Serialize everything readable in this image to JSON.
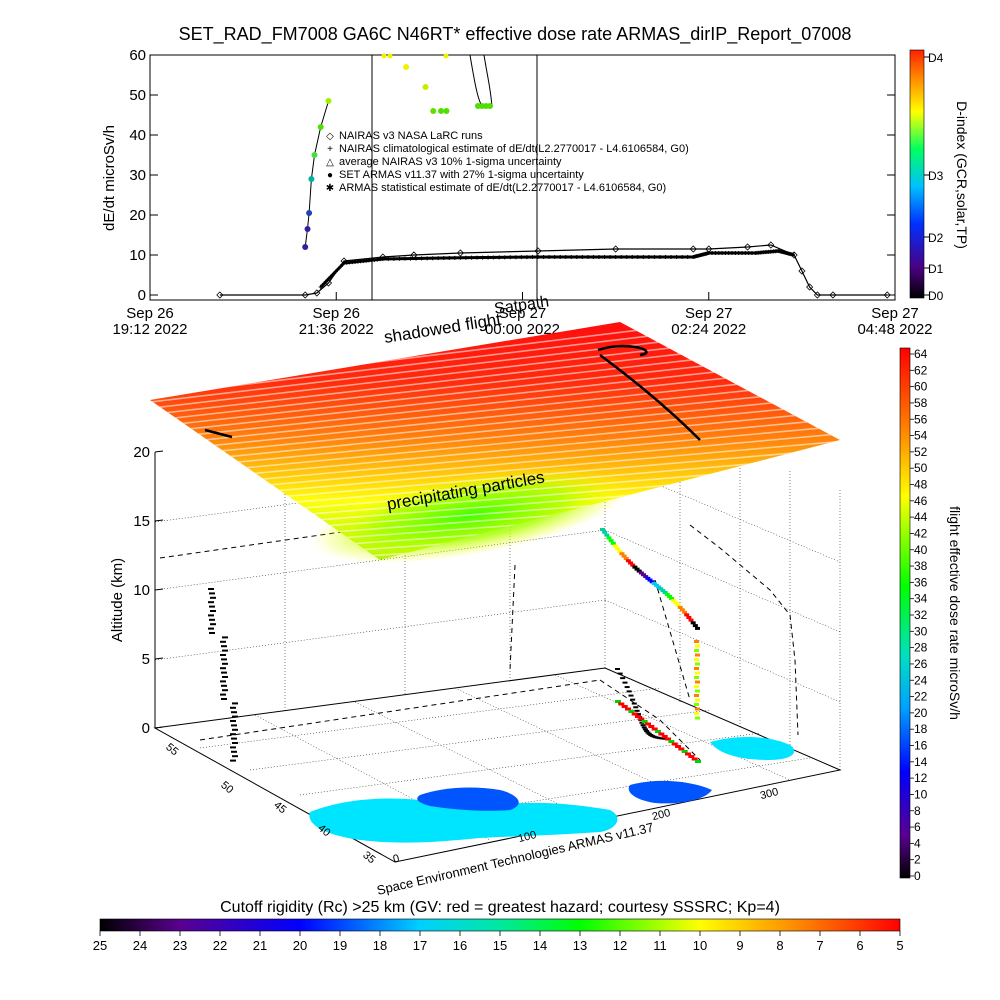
{
  "top_chart": {
    "title": "SET_RAD_FM7008  GA6C N46RT* effective dose rate ARMAS_dirIP_Report_07008",
    "ylabel": "dE/dt microSv/h",
    "ylim": [
      0,
      60
    ],
    "y_ticks": [
      "0",
      "10",
      "20",
      "30",
      "40",
      "50",
      "60"
    ],
    "x_ticks": [
      {
        "line1": "Sep 26",
        "line2": "19:12 2022"
      },
      {
        "line1": "Sep 26",
        "line2": "21:36 2022"
      },
      {
        "line1": "Sep 27",
        "line2": "00:00 2022"
      },
      {
        "line1": "Sep 27",
        "line2": "02:24 2022"
      },
      {
        "line1": "Sep 27",
        "line2": "04:48 2022"
      }
    ],
    "legend": [
      {
        "symbol": "◇",
        "text": "NAIRAS v3 NASA LaRC runs"
      },
      {
        "symbol": "+",
        "text": "NAIRAS climatological estimate of dE/dt(L2.2770017 - L4.6106584, G0)"
      },
      {
        "symbol": "△",
        "text": "average NAIRAS v3 10% 1-sigma uncertainty"
      },
      {
        "symbol": "●",
        "text": "SET ARMAS v11.37 with 27% 1-sigma uncertainty"
      },
      {
        "symbol": "✱",
        "text": "ARMAS statistical estimate of dE/dt(L2.2770017 - L4.6106584, G0)"
      }
    ],
    "dindex_label": "D-index (GCR,solar,TP)",
    "dindex_ticks": [
      "D4",
      "D3",
      "D2",
      "D1",
      "D0"
    ]
  },
  "chart_data": [
    {
      "type": "line",
      "title": "SET_RAD_FM7008  GA6C N46RT* effective dose rate ARMAS_dirIP_Report_07008",
      "ylabel": "dE/dt microSv/h",
      "ylim": [
        0,
        60
      ],
      "x_unit": "hours after Sep 26 19:12 2022",
      "xlim": [
        0,
        9.6
      ],
      "series": [
        {
          "name": "NAIRAS v3 NASA LaRC runs",
          "x": [
            0.9,
            2.0,
            2.15,
            2.3,
            2.5,
            3.0,
            3.4,
            4.0,
            5.0,
            6.0,
            7.0,
            7.2,
            7.7,
            8.0,
            8.3,
            8.4,
            8.5,
            8.6,
            8.8,
            9.5
          ],
          "y": [
            0,
            0,
            0.5,
            3,
            8.5,
            9.5,
            10,
            10.5,
            11,
            11.5,
            11.5,
            11.5,
            12,
            12.5,
            10,
            6,
            2,
            0,
            0,
            0
          ]
        },
        {
          "name": "ARMAS statistical estimate of dE/dt(L2.2770017 - L4.6106584, G0)",
          "x": [
            2.2,
            2.5,
            3.0,
            4.0,
            5.0,
            6.0,
            7.0,
            7.2,
            7.8,
            8.1,
            8.3
          ],
          "y": [
            2,
            8,
            9,
            9.3,
            9.5,
            9.5,
            9.5,
            10.5,
            10.5,
            11,
            10
          ]
        },
        {
          "name": "SET ARMAS v11.37 with 27% 1-sigma uncertainty",
          "x": [
            2.0,
            2.03,
            2.05,
            2.08,
            2.12,
            2.2,
            2.3,
            3.1,
            3.3,
            3.55,
            3.65,
            3.75,
            3.82
          ],
          "y": [
            12,
            16.5,
            20.5,
            29,
            35,
            42,
            48.5,
            62,
            57,
            52,
            46,
            46,
            46
          ]
        }
      ],
      "dindex": {
        "label": "D-index (GCR,solar,TP)",
        "ticks": [
          "D0",
          "D1",
          "D2",
          "D3",
          "D4"
        ]
      }
    },
    {
      "type": "heatmap",
      "title": "",
      "xlabel": "",
      "ylabel": "Altitude (km)",
      "zlim": [
        0,
        20
      ],
      "z_ticks": [
        0,
        5,
        10,
        15,
        20
      ],
      "lon_ticks": [
        0,
        100,
        200,
        300
      ],
      "lat_ticks": [
        35,
        40,
        45,
        50,
        55
      ],
      "colorbar_label": "flight effective dose rate microSv/h",
      "colorbar_range": [
        0,
        64
      ],
      "colorbar_ticks": [
        0,
        2,
        4,
        6,
        8,
        10,
        12,
        14,
        16,
        18,
        20,
        22,
        24,
        26,
        28,
        30,
        32,
        34,
        36,
        38,
        40,
        42,
        44,
        46,
        48,
        50,
        52,
        54,
        56,
        58,
        60,
        62,
        64
      ],
      "annotations": [
        "shadowed flight",
        "Satpath",
        "precipitating particles"
      ],
      "credit": "Space Environment Technologies ARMAS v11.37"
    }
  ],
  "scene": {
    "annotation_shadowed": "shadowed flight",
    "annotation_satpath": "Satpath",
    "annotation_precip": "precipitating particles",
    "zlabel": "Altitude (km)",
    "z_ticks": [
      "0",
      "5",
      "10",
      "15",
      "20"
    ],
    "lat_ticks": [
      "55",
      "50",
      "45",
      "40",
      "35"
    ],
    "lon_ticks": [
      "0",
      "100",
      "200",
      "300"
    ],
    "credit": "Space Environment Technologies ARMAS v11.37"
  },
  "dose_colorbar": {
    "label": "flight effective dose rate microSv/h",
    "ticks": [
      "64",
      "62",
      "60",
      "58",
      "56",
      "54",
      "52",
      "50",
      "48",
      "46",
      "44",
      "42",
      "40",
      "38",
      "36",
      "34",
      "32",
      "30",
      "28",
      "26",
      "24",
      "22",
      "20",
      "18",
      "16",
      "14",
      "12",
      "10",
      "8",
      "6",
      "4",
      "2",
      "0"
    ]
  },
  "rigidity_bar": {
    "title": "Cutoff rigidity (Rc) >25 km (GV: red = greatest hazard; courtesy SSSRC; Kp=4)",
    "ticks": [
      "25",
      "24",
      "23",
      "22",
      "21",
      "20",
      "19",
      "18",
      "17",
      "16",
      "15",
      "14",
      "13",
      "12",
      "11",
      "10",
      "9",
      "8",
      "7",
      "6",
      "5"
    ]
  },
  "colors": {
    "rainbow": [
      "#000000",
      "#5a0090",
      "#0000ff",
      "#00c8ff",
      "#00d0a0",
      "#00ff00",
      "#ffff00",
      "#ff8000",
      "#ff0000"
    ],
    "surface_red": "#ff0000",
    "surface_green": "#66ff00",
    "land_cyan": "#00e5ff",
    "land_blue": "#0055ff"
  }
}
